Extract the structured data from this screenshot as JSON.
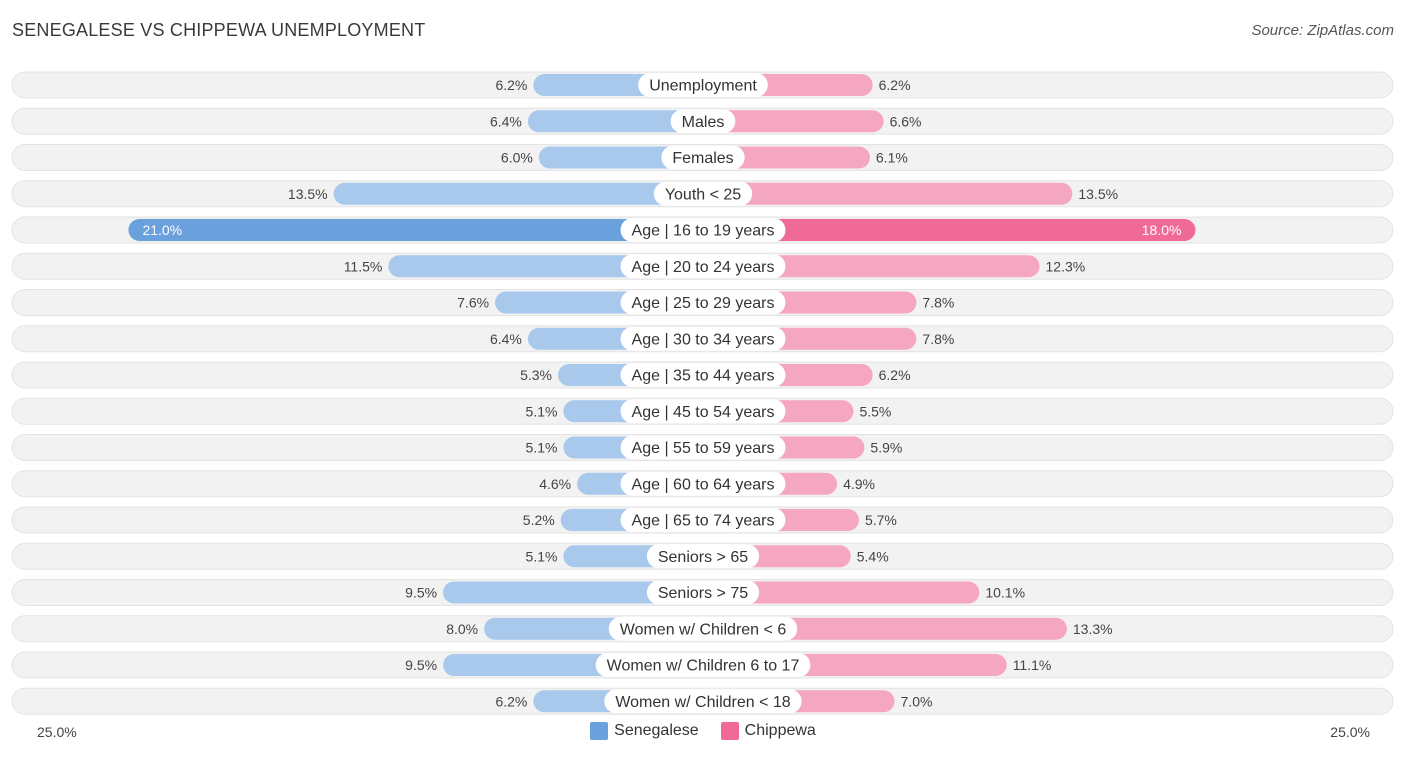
{
  "header": {
    "title": "SENEGALESE VS CHIPPEWA UNEMPLOYMENT",
    "source": "Source: ZipAtlas.com"
  },
  "colors": {
    "senegalese": "#6aa0dc",
    "senegalese_light": "#a8c8ec",
    "chippewa": "#f06a97",
    "chippewa_light": "#f5a6c1",
    "row_bg": "#f0f0f0"
  },
  "chart_data": {
    "type": "bar",
    "orientation": "horizontal-diverging",
    "title": "SENEGALESE VS CHIPPEWA UNEMPLOYMENT",
    "axis": {
      "max": 25.0,
      "left_label": "25.0%",
      "right_label": "25.0%"
    },
    "legend": [
      "Senegalese",
      "Chippewa"
    ],
    "categories": [
      "Unemployment",
      "Males",
      "Females",
      "Youth < 25",
      "Age | 16 to 19 years",
      "Age | 20 to 24 years",
      "Age | 25 to 29 years",
      "Age | 30 to 34 years",
      "Age | 35 to 44 years",
      "Age | 45 to 54 years",
      "Age | 55 to 59 years",
      "Age | 60 to 64 years",
      "Age | 65 to 74 years",
      "Seniors > 65",
      "Seniors > 75",
      "Women w/ Children < 6",
      "Women w/ Children 6 to 17",
      "Women w/ Children < 18"
    ],
    "series": [
      {
        "name": "Senegalese",
        "values": [
          6.2,
          6.4,
          6.0,
          13.5,
          21.0,
          11.5,
          7.6,
          6.4,
          5.3,
          5.1,
          5.1,
          4.6,
          5.2,
          5.1,
          9.5,
          8.0,
          9.5,
          6.2
        ],
        "labels": [
          "6.2%",
          "6.4%",
          "6.0%",
          "13.5%",
          "21.0%",
          "11.5%",
          "7.6%",
          "6.4%",
          "5.3%",
          "5.1%",
          "5.1%",
          "4.6%",
          "5.2%",
          "5.1%",
          "9.5%",
          "8.0%",
          "9.5%",
          "6.2%"
        ]
      },
      {
        "name": "Chippewa",
        "values": [
          6.2,
          6.6,
          6.1,
          13.5,
          18.0,
          12.3,
          7.8,
          7.8,
          6.2,
          5.5,
          5.9,
          4.9,
          5.7,
          5.4,
          10.1,
          13.3,
          11.1,
          7.0
        ],
        "labels": [
          "6.2%",
          "6.6%",
          "6.1%",
          "13.5%",
          "18.0%",
          "12.3%",
          "7.8%",
          "7.8%",
          "6.2%",
          "5.5%",
          "5.9%",
          "4.9%",
          "5.7%",
          "5.4%",
          "10.1%",
          "13.3%",
          "11.1%",
          "7.0%"
        ]
      }
    ]
  }
}
